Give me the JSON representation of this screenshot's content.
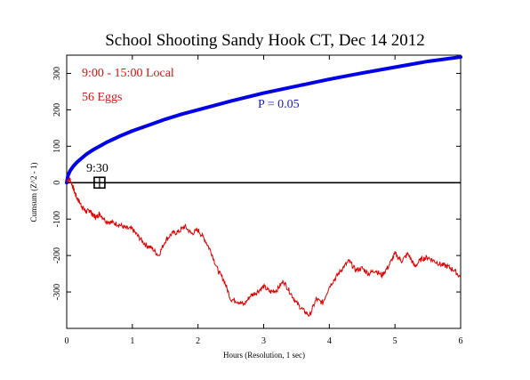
{
  "chart_data": {
    "type": "line",
    "title": "School Shooting Sandy Hook CT, Dec 14 2012",
    "xlabel": "Hours (Resolution, 1 sec)",
    "ylabel": "Cumsum (Z^2 - 1)",
    "xlim": [
      0,
      6
    ],
    "ylim": [
      -400,
      350
    ],
    "x_ticks": [
      0,
      1,
      2,
      3,
      4,
      5,
      6
    ],
    "y_ticks": [
      -300,
      -200,
      -100,
      0,
      100,
      200,
      300
    ],
    "grid": false,
    "annotations": {
      "time_range": "9:00 - 15:00 Local",
      "eggs": "56 Eggs",
      "probability": "P = 0.05",
      "event_label": "9:30",
      "event_x": 0.5
    },
    "colors": {
      "cumsum": "#e00000",
      "envelope": "#0000e6",
      "text_red": "#d81414",
      "text_blue": "#1b1bbb"
    },
    "series": [
      {
        "role": "probability-envelope",
        "x": [
          0,
          0.02,
          0.05,
          0.1,
          0.15,
          0.2,
          0.3,
          0.4,
          0.5,
          0.6,
          0.8,
          1.0,
          1.25,
          1.5,
          1.75,
          2.0,
          2.5,
          3.0,
          3.5,
          4.0,
          4.5,
          5.0,
          5.5,
          6.0
        ],
        "values": [
          0,
          20,
          32,
          45,
          55,
          63,
          78,
          90,
          100,
          110,
          127,
          142,
          158,
          174,
          188,
          200,
          224,
          246,
          265,
          284,
          301,
          317,
          333,
          345
        ]
      },
      {
        "role": "cumulative-deviation",
        "x": [
          0,
          0.05,
          0.1,
          0.15,
          0.2,
          0.25,
          0.3,
          0.35,
          0.4,
          0.45,
          0.5,
          0.6,
          0.7,
          0.8,
          0.9,
          1.0,
          1.1,
          1.2,
          1.3,
          1.4,
          1.5,
          1.6,
          1.7,
          1.8,
          1.9,
          2.0,
          2.1,
          2.2,
          2.3,
          2.4,
          2.5,
          2.6,
          2.7,
          2.8,
          2.9,
          3.0,
          3.1,
          3.2,
          3.3,
          3.4,
          3.5,
          3.6,
          3.7,
          3.8,
          3.9,
          4.0,
          4.1,
          4.2,
          4.3,
          4.4,
          4.5,
          4.6,
          4.7,
          4.8,
          4.9,
          5.0,
          5.1,
          5.2,
          5.3,
          5.4,
          5.5,
          5.6,
          5.7,
          5.8,
          5.9,
          6.0
        ],
        "values": [
          5,
          10,
          -15,
          -40,
          -55,
          -70,
          -80,
          -75,
          -90,
          -95,
          -85,
          -105,
          -110,
          -115,
          -125,
          -128,
          -150,
          -170,
          -180,
          -200,
          -160,
          -140,
          -135,
          -120,
          -140,
          -130,
          -155,
          -190,
          -240,
          -270,
          -320,
          -325,
          -335,
          -310,
          -300,
          -285,
          -300,
          -295,
          -270,
          -300,
          -330,
          -350,
          -365,
          -320,
          -330,
          -285,
          -260,
          -235,
          -215,
          -240,
          -235,
          -250,
          -240,
          -255,
          -230,
          -195,
          -215,
          -195,
          -230,
          -210,
          -205,
          -215,
          -225,
          -230,
          -240,
          -260
        ]
      }
    ]
  }
}
